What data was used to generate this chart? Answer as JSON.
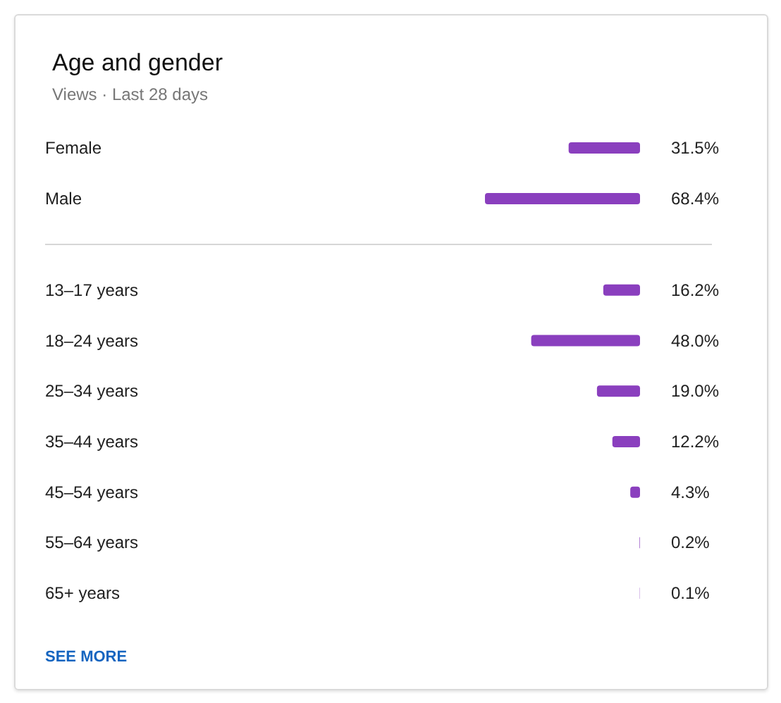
{
  "chart_data": [
    {
      "type": "bar",
      "title": "Age and gender",
      "subtitle": "Views · Last 28 days",
      "orientation": "horizontal",
      "categories": [
        "Female",
        "Male"
      ],
      "values": [
        31.5,
        68.4
      ],
      "value_labels": [
        "31.5%",
        "68.4%"
      ],
      "color": "#8a3fbe"
    },
    {
      "type": "bar",
      "orientation": "horizontal",
      "categories": [
        "13–17 years",
        "18–24 years",
        "25–34 years",
        "35–44 years",
        "45–54 years",
        "55–64 years",
        "65+ years"
      ],
      "values": [
        16.2,
        48.0,
        19.0,
        12.2,
        4.3,
        0.2,
        0.1
      ],
      "value_labels": [
        "16.2%",
        "48.0%",
        "19.0%",
        "12.2%",
        "4.3%",
        "0.2%",
        "0.1%"
      ],
      "color": "#8a3fbe",
      "annotations": [
        "SEE MORE"
      ]
    }
  ]
}
